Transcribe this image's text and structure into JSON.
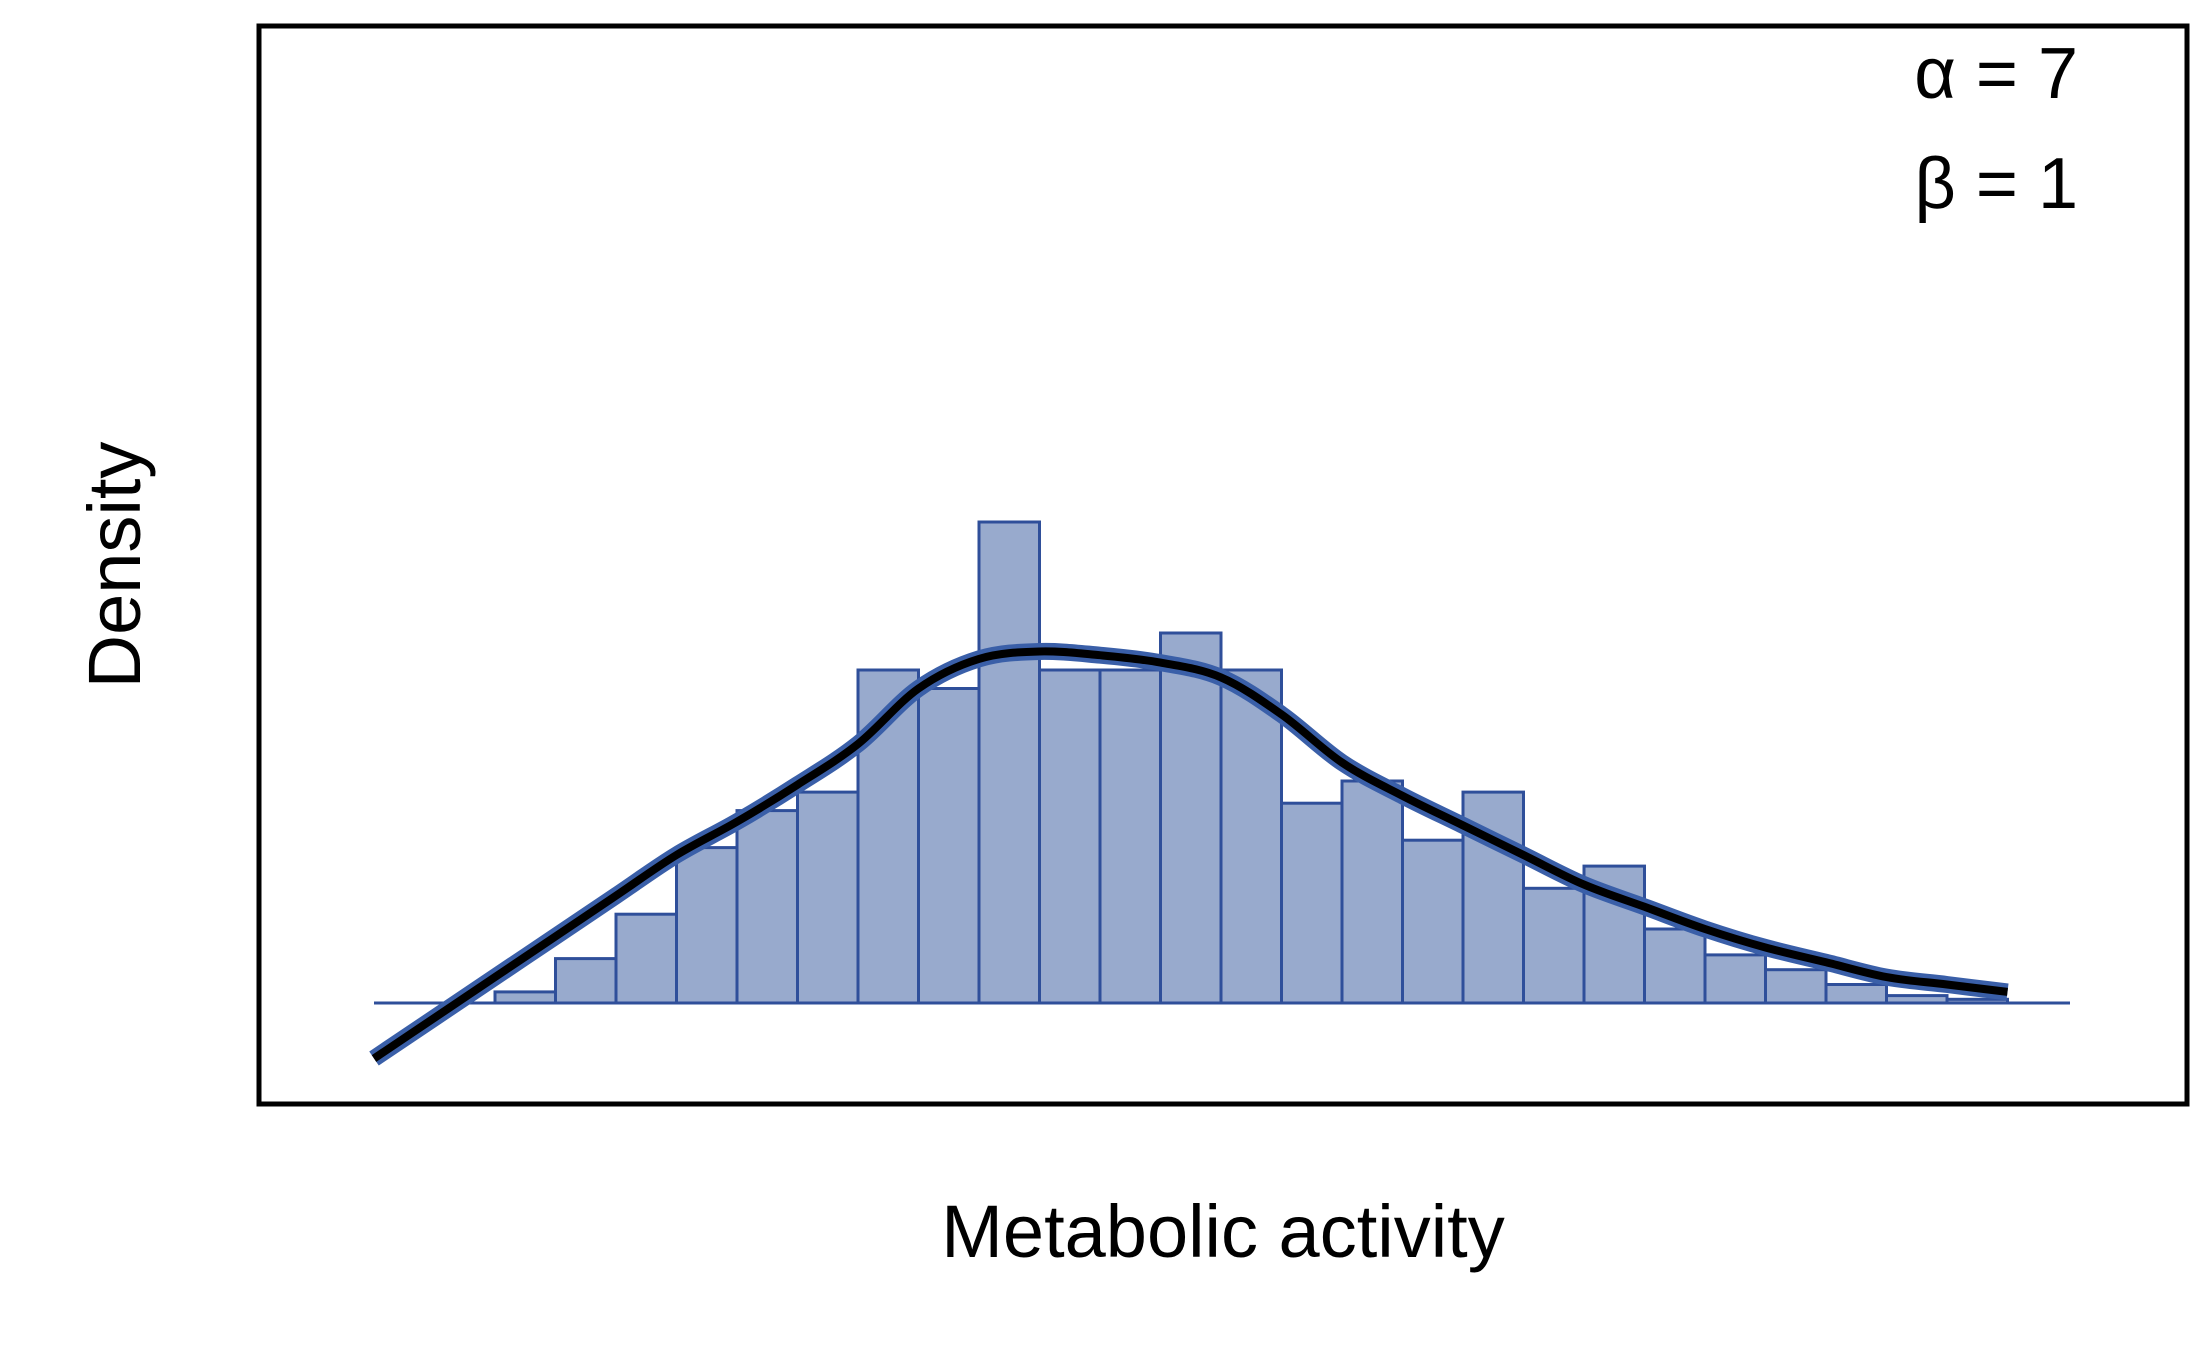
{
  "chart_data": {
    "type": "bar",
    "title": "",
    "xlabel": "Metabolic activity",
    "ylabel": "Density",
    "annotations": [
      "α = 7",
      "β = 1"
    ],
    "x_ticks_shown": false,
    "y_ticks_shown": false,
    "grid": false,
    "legend": "none",
    "bar_fill_color": "#98aacd",
    "bar_edge_color": "#2f4f9a",
    "curve_color": "#000000",
    "curve_halo_color": "#3a5fa8",
    "bar_width": 1,
    "bins_start": 0,
    "histogram_values": [
      0.0,
      0.0,
      0.3,
      1.2,
      2.4,
      4.2,
      5.2,
      5.7,
      9.0,
      8.5,
      13.0,
      9.0,
      9.0,
      10.0,
      9.0,
      5.4,
      6.0,
      4.4,
      5.7,
      3.1,
      3.7,
      2.0,
      1.3,
      0.9,
      0.5,
      0.2,
      0.1,
      0.0
    ],
    "density_curve": {
      "x": [
        0.0,
        1.0,
        2.0,
        3.0,
        4.0,
        5.0,
        6.0,
        7.0,
        8.0,
        9.0,
        10.0,
        11.0,
        12.0,
        13.0,
        14.0,
        15.0,
        16.0,
        17.0,
        18.0,
        19.0,
        20.0,
        21.0,
        22.0,
        23.0,
        24.0,
        25.0,
        26.0,
        27.0
      ],
      "y": [
        -1.5,
        -0.4,
        0.7,
        1.8,
        2.9,
        4.0,
        4.9,
        5.9,
        7.0,
        8.5,
        9.3,
        9.5,
        9.4,
        9.2,
        8.8,
        7.8,
        6.5,
        5.6,
        4.8,
        4.0,
        3.2,
        2.6,
        2.0,
        1.5,
        1.1,
        0.7,
        0.5,
        0.3
      ]
    },
    "xlim": [
      -2,
      30
    ],
    "ylim": [
      -2.7,
      26.5
    ]
  }
}
